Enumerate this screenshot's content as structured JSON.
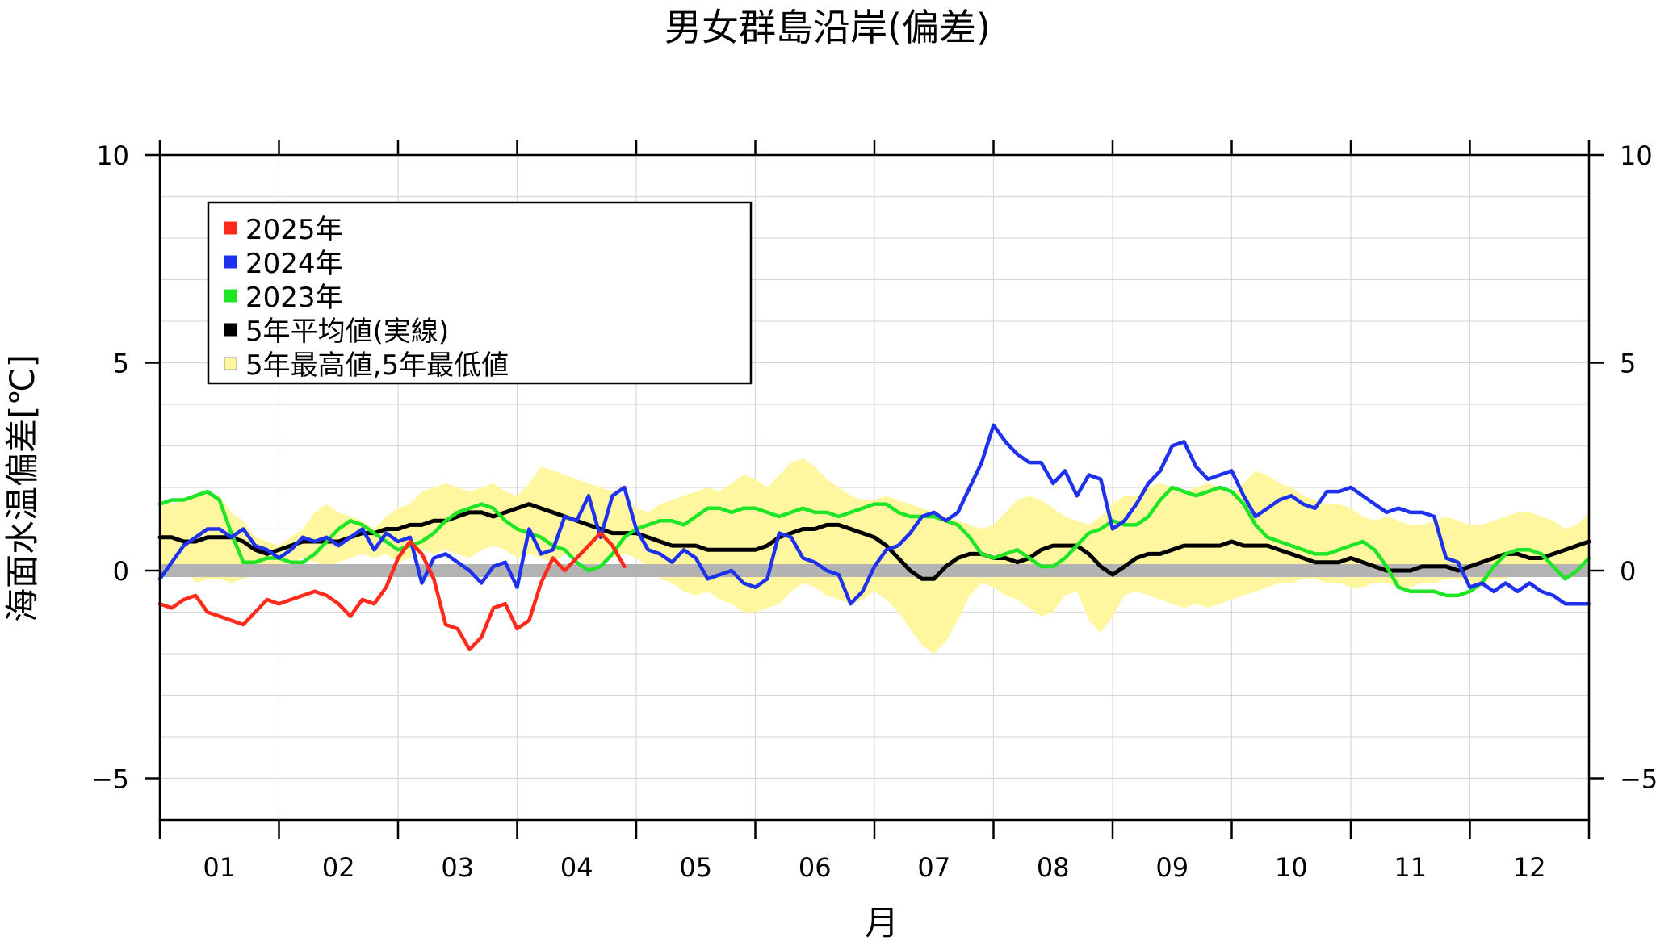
{
  "chart_data": {
    "type": "line",
    "title": "男女群島沿岸(偏差)",
    "xlabel": "月",
    "ylabel": "海面水温偏差[℃]",
    "ylim": [
      -6,
      10
    ],
    "y_ticks": [
      10,
      5,
      0,
      -5
    ],
    "y_tick_labels": [
      "10",
      "5",
      "0",
      "−5"
    ],
    "x_domain": [
      1,
      13
    ],
    "categories": [
      "01",
      "02",
      "03",
      "04",
      "05",
      "06",
      "07",
      "08",
      "09",
      "10",
      "11",
      "12"
    ],
    "grid": true,
    "legend_position": "top-left",
    "colors": {
      "s2025": "#ff2a1a",
      "s2024": "#1e32ee",
      "s2023": "#1ee626",
      "mean": "#000000",
      "band": "#fff6a0",
      "zero": "#b3b3b3"
    },
    "legend": [
      {
        "label": "2025年",
        "color": "#ff2a1a"
      },
      {
        "label": "2024年",
        "color": "#1e32ee"
      },
      {
        "label": "2023年",
        "color": "#1ee626"
      },
      {
        "label": "5年平均値(実線)",
        "color": "#000000"
      },
      {
        "label": "5年最高値,5年最低値",
        "color": "#fff6a0"
      }
    ],
    "series": [
      {
        "name": "2025年",
        "key": "s2025",
        "x": [
          1.0,
          1.1,
          1.2,
          1.3,
          1.4,
          1.5,
          1.6,
          1.7,
          1.8,
          1.9,
          2.0,
          2.1,
          2.2,
          2.3,
          2.4,
          2.5,
          2.6,
          2.7,
          2.8,
          2.9,
          3.0,
          3.1,
          3.2,
          3.3,
          3.4,
          3.5,
          3.6,
          3.7,
          3.8,
          3.9,
          4.0,
          4.1,
          4.2,
          4.3,
          4.4,
          4.5,
          4.6,
          4.7,
          4.8,
          4.9,
          5.0,
          5.1,
          5.2
        ],
        "y": [
          -0.8,
          -0.9,
          -0.7,
          -0.6,
          -1.0,
          -1.1,
          -1.2,
          -1.3,
          -1.0,
          -0.7,
          -0.8,
          -0.7,
          -0.6,
          -0.5,
          -0.6,
          -0.8,
          -1.1,
          -0.7,
          -0.8,
          -0.4,
          0.3,
          0.7,
          0.4,
          -0.2,
          -1.3,
          -1.4,
          -1.9,
          -1.6,
          -0.9,
          -0.8,
          -1.4,
          -1.2,
          -0.3,
          0.3,
          0.0,
          0.3,
          0.6,
          0.9,
          0.6,
          0.1,
          null,
          null,
          null
        ]
      },
      {
        "name": "2024年",
        "key": "s2024",
        "x": [
          1.0,
          1.1,
          1.2,
          1.3,
          1.4,
          1.5,
          1.6,
          1.7,
          1.8,
          1.9,
          2.0,
          2.1,
          2.2,
          2.3,
          2.4,
          2.5,
          2.6,
          2.7,
          2.8,
          2.9,
          3.0,
          3.1,
          3.2,
          3.3,
          3.4,
          3.5,
          3.6,
          3.7,
          3.8,
          3.9,
          4.0,
          4.1,
          4.2,
          4.3,
          4.4,
          4.5,
          4.6,
          4.7,
          4.8,
          4.9,
          5.0,
          5.1,
          5.2,
          5.3,
          5.4,
          5.5,
          5.6,
          5.7,
          5.8,
          5.9,
          6.0,
          6.1,
          6.2,
          6.3,
          6.4,
          6.5,
          6.6,
          6.7,
          6.8,
          6.9,
          7.0,
          7.1,
          7.2,
          7.3,
          7.4,
          7.5,
          7.6,
          7.7,
          7.8,
          7.9,
          8.0,
          8.1,
          8.2,
          8.3,
          8.4,
          8.5,
          8.6,
          8.7,
          8.8,
          8.9,
          9.0,
          9.1,
          9.2,
          9.3,
          9.4,
          9.5,
          9.6,
          9.7,
          9.8,
          9.9,
          10.0,
          10.1,
          10.2,
          10.3,
          10.4,
          10.5,
          10.6,
          10.7,
          10.8,
          10.9,
          11.0,
          11.1,
          11.2,
          11.3,
          11.4,
          11.5,
          11.6,
          11.7,
          11.8,
          11.9,
          12.0,
          12.1,
          12.2,
          12.3,
          12.4,
          12.5,
          12.6,
          12.7,
          12.8,
          12.9,
          13.0
        ],
        "y": [
          -0.2,
          0.2,
          0.6,
          0.8,
          1.0,
          1.0,
          0.8,
          1.0,
          0.6,
          0.5,
          0.3,
          0.5,
          0.8,
          0.7,
          0.8,
          0.6,
          0.8,
          1.0,
          0.5,
          0.9,
          0.7,
          0.8,
          -0.3,
          0.3,
          0.4,
          0.2,
          0.0,
          -0.3,
          0.1,
          0.2,
          -0.4,
          1.0,
          0.4,
          0.5,
          1.3,
          1.2,
          1.8,
          0.8,
          1.8,
          2.0,
          1.0,
          0.5,
          0.4,
          0.2,
          0.5,
          0.3,
          -0.2,
          -0.1,
          0.0,
          -0.3,
          -0.4,
          -0.2,
          0.9,
          0.8,
          0.3,
          0.2,
          0.0,
          -0.1,
          -0.8,
          -0.5,
          0.1,
          0.5,
          0.6,
          0.9,
          1.3,
          1.4,
          1.2,
          1.4,
          2.0,
          2.6,
          3.5,
          3.1,
          2.8,
          2.6,
          2.6,
          2.1,
          2.4,
          1.8,
          2.3,
          2.2,
          1.0,
          1.2,
          1.6,
          2.1,
          2.4,
          3.0,
          3.1,
          2.5,
          2.2,
          2.3,
          2.4,
          1.8,
          1.3,
          1.5,
          1.7,
          1.8,
          1.6,
          1.5,
          1.9,
          1.9,
          2.0,
          1.8,
          1.6,
          1.4,
          1.5,
          1.4,
          1.4,
          1.3,
          0.3,
          0.2,
          -0.4,
          -0.3,
          -0.5,
          -0.3,
          -0.5,
          -0.3,
          -0.5,
          -0.6,
          -0.8,
          -0.8,
          -0.8
        ]
      },
      {
        "name": "2023年",
        "key": "s2023",
        "x": [
          1.0,
          1.1,
          1.2,
          1.3,
          1.4,
          1.5,
          1.6,
          1.7,
          1.8,
          1.9,
          2.0,
          2.1,
          2.2,
          2.3,
          2.4,
          2.5,
          2.6,
          2.7,
          2.8,
          2.9,
          3.0,
          3.1,
          3.2,
          3.3,
          3.4,
          3.5,
          3.6,
          3.7,
          3.8,
          3.9,
          4.0,
          4.1,
          4.2,
          4.3,
          4.4,
          4.5,
          4.6,
          4.7,
          4.8,
          4.9,
          5.0,
          5.1,
          5.2,
          5.3,
          5.4,
          5.5,
          5.6,
          5.7,
          5.8,
          5.9,
          6.0,
          6.1,
          6.2,
          6.3,
          6.4,
          6.5,
          6.6,
          6.7,
          6.8,
          6.9,
          7.0,
          7.1,
          7.2,
          7.3,
          7.4,
          7.5,
          7.6,
          7.7,
          7.8,
          7.9,
          8.0,
          8.1,
          8.2,
          8.3,
          8.4,
          8.5,
          8.6,
          8.7,
          8.8,
          8.9,
          9.0,
          9.1,
          9.2,
          9.3,
          9.4,
          9.5,
          9.6,
          9.7,
          9.8,
          9.9,
          10.0,
          10.1,
          10.2,
          10.3,
          10.4,
          10.5,
          10.6,
          10.7,
          10.8,
          10.9,
          11.0,
          11.1,
          11.2,
          11.3,
          11.4,
          11.5,
          11.6,
          11.7,
          11.8,
          11.9,
          12.0,
          12.1,
          12.2,
          12.3,
          12.4,
          12.5,
          12.6,
          12.7,
          12.8,
          12.9,
          13.0
        ],
        "y": [
          1.6,
          1.7,
          1.7,
          1.8,
          1.9,
          1.7,
          0.9,
          0.2,
          0.2,
          0.3,
          0.3,
          0.2,
          0.2,
          0.4,
          0.7,
          1.0,
          1.2,
          1.1,
          0.9,
          0.7,
          0.5,
          0.6,
          0.7,
          0.9,
          1.2,
          1.4,
          1.5,
          1.6,
          1.5,
          1.2,
          1.0,
          0.9,
          0.8,
          0.6,
          0.5,
          0.2,
          0.0,
          0.1,
          0.4,
          0.8,
          1.0,
          1.1,
          1.2,
          1.2,
          1.1,
          1.3,
          1.5,
          1.5,
          1.4,
          1.5,
          1.5,
          1.4,
          1.3,
          1.4,
          1.5,
          1.4,
          1.4,
          1.3,
          1.4,
          1.5,
          1.6,
          1.6,
          1.4,
          1.3,
          1.3,
          1.3,
          1.2,
          1.1,
          0.8,
          0.4,
          0.3,
          0.4,
          0.5,
          0.3,
          0.1,
          0.1,
          0.3,
          0.6,
          0.9,
          1.0,
          1.2,
          1.1,
          1.1,
          1.3,
          1.7,
          2.0,
          1.9,
          1.8,
          1.9,
          2.0,
          1.9,
          1.6,
          1.1,
          0.8,
          0.7,
          0.6,
          0.5,
          0.4,
          0.4,
          0.5,
          0.6,
          0.7,
          0.5,
          0.1,
          -0.4,
          -0.5,
          -0.5,
          -0.5,
          -0.6,
          -0.6,
          -0.5,
          -0.3,
          0.1,
          0.4,
          0.5,
          0.5,
          0.4,
          0.1,
          -0.2,
          0.0,
          0.3
        ]
      },
      {
        "name": "5年平均値(実線)",
        "key": "mean",
        "x": [
          1.0,
          1.1,
          1.2,
          1.3,
          1.4,
          1.5,
          1.6,
          1.7,
          1.8,
          1.9,
          2.0,
          2.1,
          2.2,
          2.3,
          2.4,
          2.5,
          2.6,
          2.7,
          2.8,
          2.9,
          3.0,
          3.1,
          3.2,
          3.3,
          3.4,
          3.5,
          3.6,
          3.7,
          3.8,
          3.9,
          4.0,
          4.1,
          4.2,
          4.3,
          4.4,
          4.5,
          4.6,
          4.7,
          4.8,
          4.9,
          5.0,
          5.1,
          5.2,
          5.3,
          5.4,
          5.5,
          5.6,
          5.7,
          5.8,
          5.9,
          6.0,
          6.1,
          6.2,
          6.3,
          6.4,
          6.5,
          6.6,
          6.7,
          6.8,
          6.9,
          7.0,
          7.1,
          7.2,
          7.3,
          7.4,
          7.5,
          7.6,
          7.7,
          7.8,
          7.9,
          8.0,
          8.1,
          8.2,
          8.3,
          8.4,
          8.5,
          8.6,
          8.7,
          8.8,
          8.9,
          9.0,
          9.1,
          9.2,
          9.3,
          9.4,
          9.5,
          9.6,
          9.7,
          9.8,
          9.9,
          10.0,
          10.1,
          10.2,
          10.3,
          10.4,
          10.5,
          10.6,
          10.7,
          10.8,
          10.9,
          11.0,
          11.1,
          11.2,
          11.3,
          11.4,
          11.5,
          11.6,
          11.7,
          11.8,
          11.9,
          12.0,
          12.1,
          12.2,
          12.3,
          12.4,
          12.5,
          12.6,
          12.7,
          12.8,
          12.9,
          13.0
        ],
        "y": [
          0.8,
          0.8,
          0.7,
          0.7,
          0.8,
          0.8,
          0.8,
          0.7,
          0.5,
          0.4,
          0.5,
          0.6,
          0.7,
          0.7,
          0.7,
          0.7,
          0.8,
          0.9,
          0.9,
          1.0,
          1.0,
          1.1,
          1.1,
          1.2,
          1.2,
          1.3,
          1.4,
          1.4,
          1.3,
          1.4,
          1.5,
          1.6,
          1.5,
          1.4,
          1.3,
          1.2,
          1.1,
          1.0,
          0.9,
          0.9,
          0.9,
          0.8,
          0.7,
          0.6,
          0.6,
          0.6,
          0.5,
          0.5,
          0.5,
          0.5,
          0.5,
          0.6,
          0.8,
          0.9,
          1.0,
          1.0,
          1.1,
          1.1,
          1.0,
          0.9,
          0.8,
          0.6,
          0.3,
          0.0,
          -0.2,
          -0.2,
          0.1,
          0.3,
          0.4,
          0.4,
          0.3,
          0.3,
          0.2,
          0.3,
          0.5,
          0.6,
          0.6,
          0.6,
          0.4,
          0.1,
          -0.1,
          0.1,
          0.3,
          0.4,
          0.4,
          0.5,
          0.6,
          0.6,
          0.6,
          0.6,
          0.7,
          0.6,
          0.6,
          0.6,
          0.5,
          0.4,
          0.3,
          0.2,
          0.2,
          0.2,
          0.3,
          0.2,
          0.1,
          0.0,
          0.0,
          0.0,
          0.1,
          0.1,
          0.1,
          0.0,
          0.1,
          0.2,
          0.3,
          0.4,
          0.4,
          0.3,
          0.3,
          0.4,
          0.5,
          0.6,
          0.7
        ]
      },
      {
        "name": "5年最高値,5年最低値",
        "key": "band",
        "x": [
          1.0,
          1.1,
          1.2,
          1.3,
          1.4,
          1.5,
          1.6,
          1.7,
          1.8,
          1.9,
          2.0,
          2.1,
          2.2,
          2.3,
          2.4,
          2.5,
          2.6,
          2.7,
          2.8,
          2.9,
          3.0,
          3.1,
          3.2,
          3.3,
          3.4,
          3.5,
          3.6,
          3.7,
          3.8,
          3.9,
          4.0,
          4.1,
          4.2,
          4.3,
          4.4,
          4.5,
          4.6,
          4.7,
          4.8,
          4.9,
          5.0,
          5.1,
          5.2,
          5.3,
          5.4,
          5.5,
          5.6,
          5.7,
          5.8,
          5.9,
          6.0,
          6.1,
          6.2,
          6.3,
          6.4,
          6.5,
          6.6,
          6.7,
          6.8,
          6.9,
          7.0,
          7.1,
          7.2,
          7.3,
          7.4,
          7.5,
          7.6,
          7.7,
          7.8,
          7.9,
          8.0,
          8.1,
          8.2,
          8.3,
          8.4,
          8.5,
          8.6,
          8.7,
          8.8,
          8.9,
          9.0,
          9.1,
          9.2,
          9.3,
          9.4,
          9.5,
          9.6,
          9.7,
          9.8,
          9.9,
          10.0,
          10.1,
          10.2,
          10.3,
          10.4,
          10.5,
          10.6,
          10.7,
          10.8,
          10.9,
          11.0,
          11.1,
          11.2,
          11.3,
          11.4,
          11.5,
          11.6,
          11.7,
          11.8,
          11.9,
          12.0,
          12.1,
          12.2,
          12.3,
          12.4,
          12.5,
          12.6,
          12.7,
          12.8,
          12.9,
          13.0
        ],
        "max": [
          1.7,
          1.6,
          1.7,
          1.8,
          1.9,
          1.8,
          1.4,
          1.2,
          0.8,
          0.7,
          0.6,
          0.8,
          1.0,
          1.4,
          1.6,
          1.4,
          1.3,
          1.2,
          1.0,
          1.3,
          1.5,
          1.6,
          1.9,
          2.0,
          2.1,
          2.0,
          1.9,
          2.0,
          2.1,
          1.9,
          1.8,
          2.1,
          2.5,
          2.4,
          2.3,
          2.2,
          2.1,
          2.0,
          1.9,
          1.8,
          1.5,
          1.4,
          1.6,
          1.7,
          1.8,
          1.9,
          2.0,
          1.9,
          2.1,
          2.3,
          2.2,
          2.0,
          2.3,
          2.6,
          2.7,
          2.5,
          2.2,
          2.0,
          1.8,
          1.7,
          1.7,
          1.8,
          1.7,
          1.6,
          1.5,
          1.4,
          1.3,
          1.2,
          1.1,
          1.0,
          1.1,
          1.4,
          1.7,
          1.8,
          1.7,
          1.5,
          1.3,
          1.2,
          1.1,
          1.3,
          1.6,
          1.8,
          1.8,
          2.0,
          2.1,
          2.0,
          1.9,
          2.0,
          2.1,
          2.0,
          1.8,
          2.1,
          2.4,
          2.3,
          2.1,
          2.0,
          1.8,
          1.7,
          1.6,
          1.6,
          1.5,
          1.3,
          1.2,
          1.3,
          1.2,
          1.1,
          1.1,
          1.2,
          1.3,
          1.2,
          1.1,
          1.1,
          1.2,
          1.3,
          1.4,
          1.4,
          1.3,
          1.2,
          1.0,
          1.1,
          1.4
        ],
        "min": [
          -0.2,
          0.0,
          0.1,
          -0.3,
          -0.2,
          -0.2,
          -0.3,
          -0.2,
          -0.1,
          0.0,
          0.1,
          0.2,
          0.3,
          0.2,
          0.1,
          0.2,
          0.3,
          0.4,
          0.3,
          0.4,
          0.2,
          0.3,
          0.5,
          0.4,
          0.5,
          0.4,
          0.3,
          0.5,
          0.6,
          0.5,
          0.3,
          0.4,
          0.3,
          0.2,
          0.4,
          0.3,
          0.1,
          0.2,
          0.3,
          0.4,
          0.3,
          0.1,
          -0.2,
          -0.3,
          -0.5,
          -0.6,
          -0.5,
          -0.7,
          -0.8,
          -1.0,
          -1.0,
          -0.9,
          -0.8,
          -0.5,
          -0.3,
          -0.4,
          -0.6,
          -0.7,
          -0.8,
          -0.7,
          -0.5,
          -0.7,
          -1.0,
          -1.4,
          -1.8,
          -2.0,
          -1.7,
          -1.2,
          -0.6,
          -0.3,
          -0.4,
          -0.6,
          -0.7,
          -0.9,
          -1.1,
          -1.0,
          -0.6,
          -0.5,
          -1.2,
          -1.5,
          -1.1,
          -0.6,
          -0.5,
          -0.6,
          -0.7,
          -0.8,
          -0.9,
          -0.8,
          -0.9,
          -0.8,
          -0.7,
          -0.6,
          -0.5,
          -0.4,
          -0.3,
          -0.3,
          -0.2,
          -0.2,
          -0.3,
          -0.3,
          -0.4,
          -0.4,
          -0.3,
          -0.3,
          -0.4,
          -0.4,
          -0.3,
          -0.3,
          -0.2,
          -0.2,
          -0.3,
          -0.3,
          -0.2,
          -0.2,
          -0.1,
          -0.1,
          0.0,
          0.1,
          0.1,
          0.0,
          0.0
        ]
      }
    ]
  }
}
